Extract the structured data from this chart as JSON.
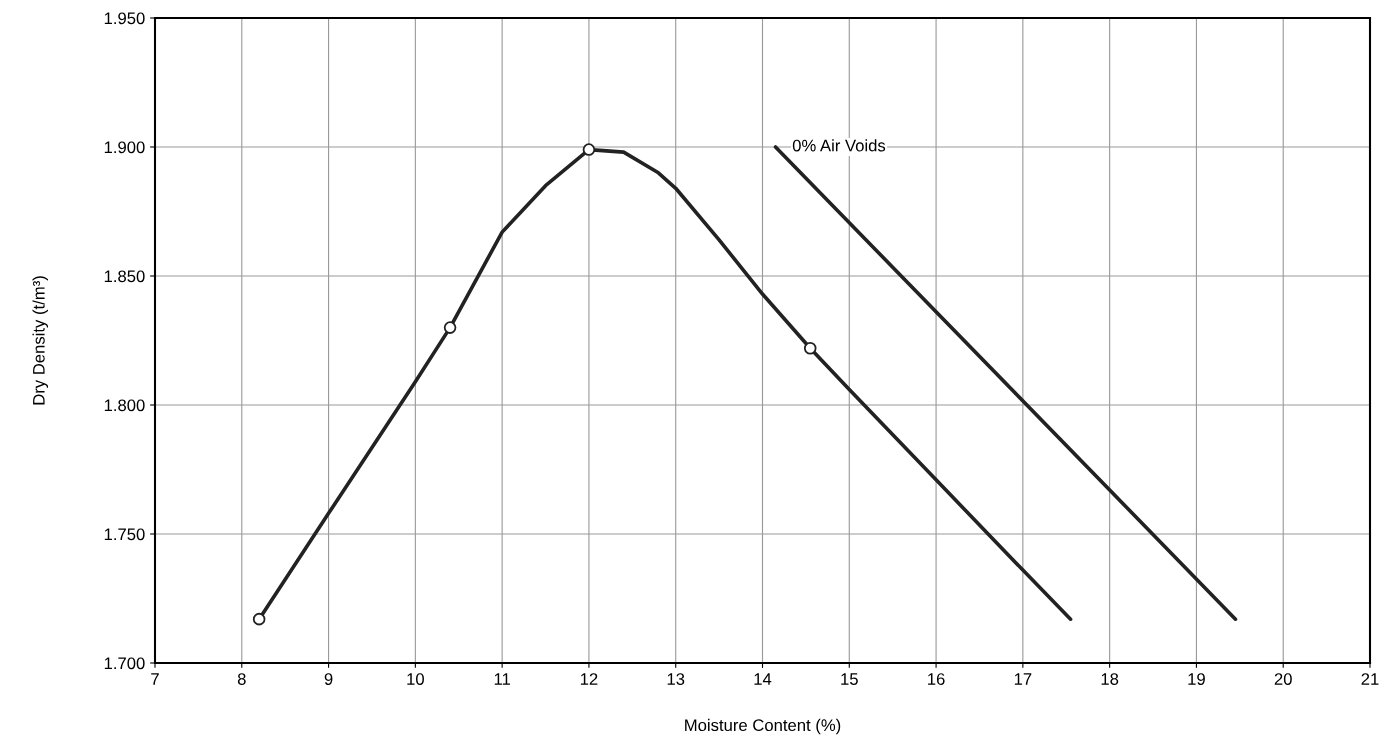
{
  "chart_data": {
    "type": "line",
    "xlabel": "Moisture Content (%)",
    "ylabel": "Dry Density (t/m³)",
    "xlim": [
      7,
      21
    ],
    "xticks": [
      7,
      8,
      9,
      10,
      11,
      12,
      13,
      14,
      15,
      16,
      17,
      18,
      19,
      20,
      21
    ],
    "ylim": [
      1.7,
      1.95
    ],
    "yticks": [
      {
        "value": 1.7,
        "label": "1.700"
      },
      {
        "value": 1.75,
        "label": "1.750"
      },
      {
        "value": 1.8,
        "label": "1.800"
      },
      {
        "value": 1.85,
        "label": "1.850"
      },
      {
        "value": 1.9,
        "label": "1.900"
      },
      {
        "value": 1.95,
        "label": "1.950"
      }
    ],
    "grid": true,
    "series": [
      {
        "color": "#222222",
        "marker": "none",
        "x": [
          8.2,
          9,
          10,
          10.4,
          11,
          11.5,
          12,
          12.4,
          12.8,
          13,
          13.5,
          14,
          14.55,
          15,
          16,
          17,
          17.55
        ],
        "values": [
          1.717,
          1.758,
          1.809,
          1.83,
          1.867,
          1.885,
          1.899,
          1.898,
          1.89,
          1.884,
          1.864,
          1.843,
          1.822,
          1.806,
          1.771,
          1.736,
          1.717
        ]
      },
      {
        "type": "scatter",
        "color": "#ffffff",
        "marker": "circle",
        "x": [
          8.2,
          10.4,
          12.0,
          14.55
        ],
        "values": [
          1.717,
          1.83,
          1.899,
          1.822
        ]
      },
      {
        "color": "#222222",
        "marker": "none",
        "x": [
          14.15,
          19.45
        ],
        "values": [
          1.9,
          1.717
        ]
      }
    ],
    "annotations": [
      {
        "text": "0% Air Voids",
        "x": 14.15,
        "y": 1.9
      }
    ]
  }
}
